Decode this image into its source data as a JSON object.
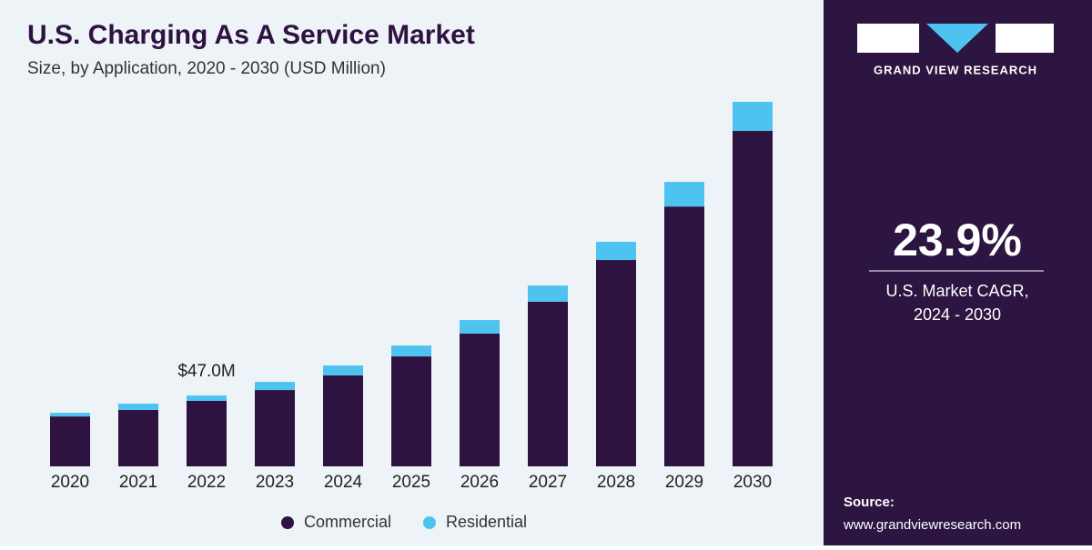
{
  "chart_data": {
    "type": "stacked_bar",
    "title": "U.S. Charging As A Service Market",
    "subtitle": "Size, by Application, 2020 - 2030 (USD Million)",
    "categories": [
      "2020",
      "2021",
      "2022",
      "2023",
      "2024",
      "2025",
      "2026",
      "2027",
      "2028",
      "2029",
      "2030"
    ],
    "series": [
      {
        "name": "Commercial",
        "color": "#2e1340",
        "values": [
          33.1,
          37.4,
          43.4,
          50.6,
          60.3,
          72.9,
          88.0,
          109.1,
          136.8,
          172.3,
          222.4
        ]
      },
      {
        "name": "Residential",
        "color": "#4fc3f0",
        "values": [
          2.4,
          4.2,
          3.6,
          5.4,
          6.6,
          7.2,
          9.0,
          10.8,
          12.1,
          16.3,
          19.3
        ]
      }
    ],
    "annotation": {
      "category": "2022",
      "value": 47.0,
      "label": "$47.0M"
    },
    "legend": "bottom"
  },
  "panel": {
    "brand": "GRAND VIEW RESEARCH",
    "cagr": "23.9%",
    "cagr_caption": [
      "U.S. Market CAGR,",
      "2024 - 2030"
    ],
    "source_title": "Source:",
    "source_url": "www.grandviewresearch.com"
  }
}
